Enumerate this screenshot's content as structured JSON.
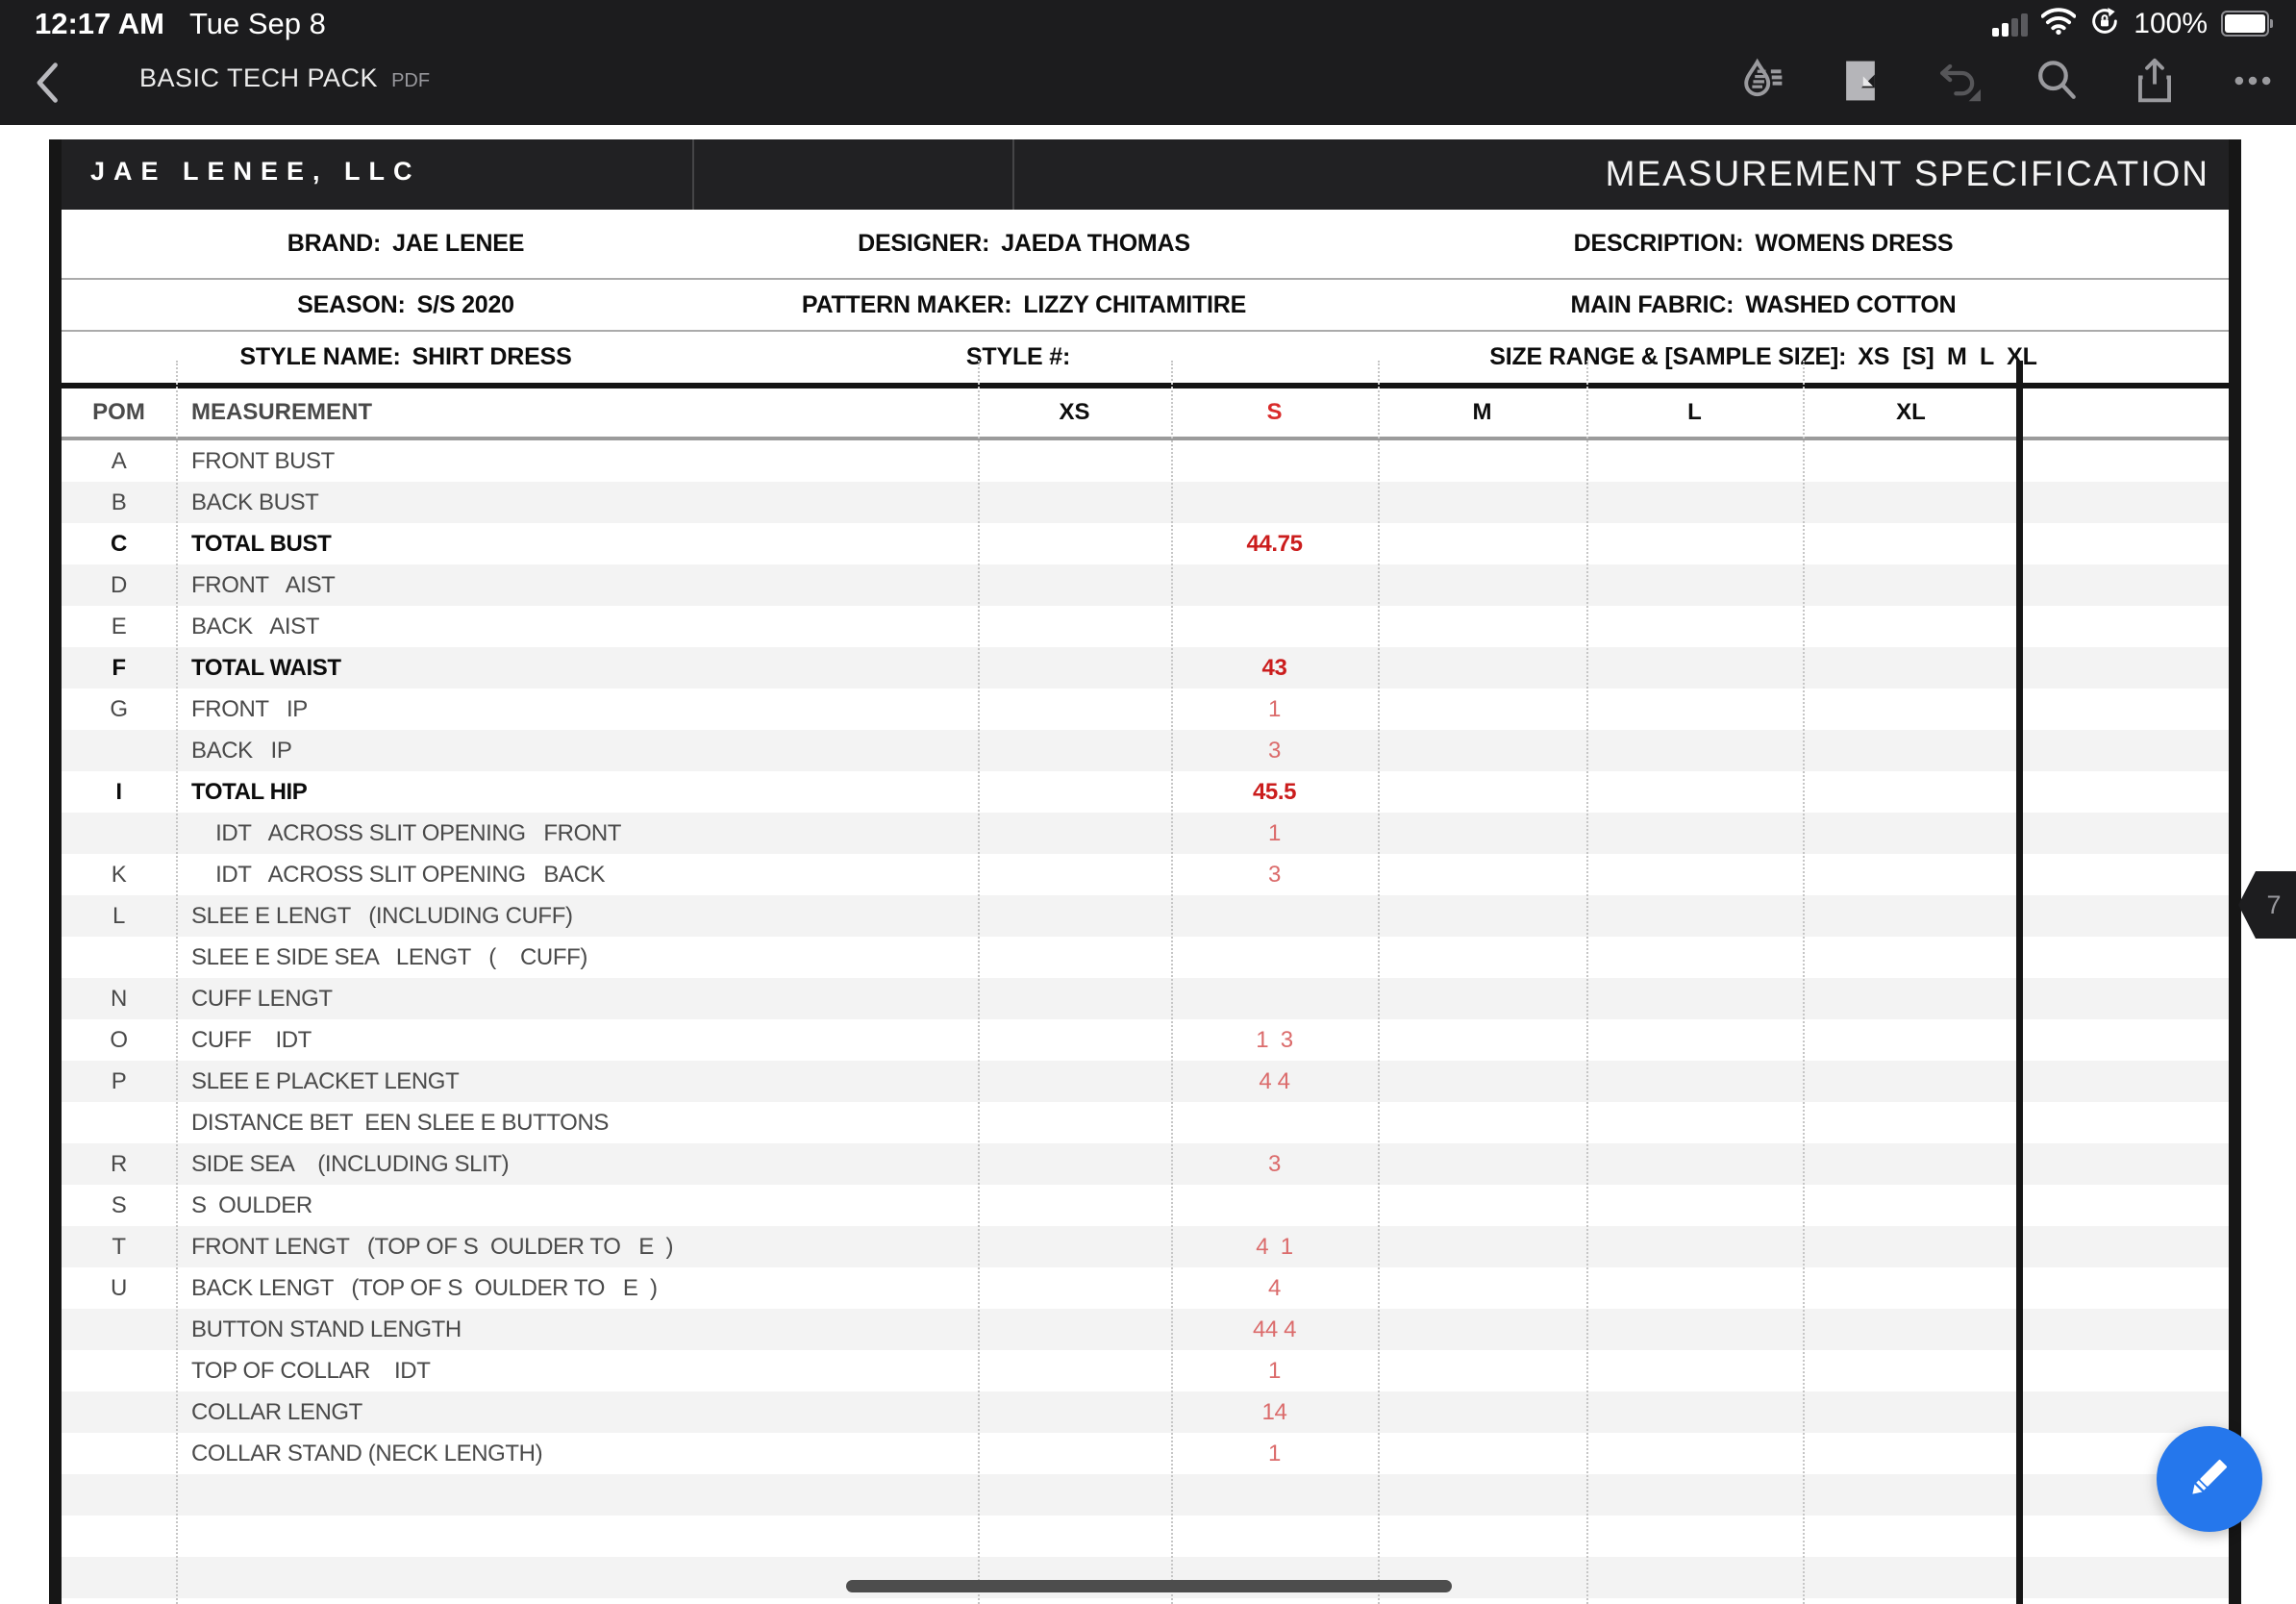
{
  "status_bar": {
    "time": "12:17 AM",
    "date": "Tue Sep 8",
    "battery_percent": "100%"
  },
  "toolbar": {
    "title": "BASIC TECH PACK",
    "doc_type": "PDF",
    "icons": [
      "back-chevron",
      "annotate",
      "reading-view",
      "undo",
      "search",
      "share",
      "more"
    ]
  },
  "page": {
    "company": "JAE LENEE, LLC",
    "sheet_title": "MEASUREMENT SPECIFICATION",
    "page_number": "7",
    "info": {
      "brand_label": "BRAND:",
      "brand": "JAE LENEE",
      "designer_label": "DESIGNER:",
      "designer": "JAEDA THOMAS",
      "description_label": "DESCRIPTION:",
      "description": "WOMENS DRESS",
      "season_label": "SEASON:",
      "season": "S/S 2020",
      "pattern_maker_label": "PATTERN MAKER:",
      "pattern_maker": "LIZZY CHITAMITIRE",
      "main_fabric_label": "MAIN FABRIC:",
      "main_fabric": "WASHED COTTON",
      "style_name_label": "STYLE NAME:",
      "style_name": "SHIRT DRESS",
      "style_no_label": "STYLE #:",
      "style_no": "",
      "size_range_label": "SIZE RANGE & [SAMPLE SIZE]:",
      "size_range": "XS  [S]  M  L  XL"
    },
    "table": {
      "headers": {
        "pom": "POM",
        "measurement": "MEASUREMENT",
        "xs": "XS",
        "s": "S",
        "m": "M",
        "l": "L",
        "xl": "XL"
      },
      "rows": [
        {
          "pom": "A",
          "label": "FRONT BUST",
          "s": "",
          "bold": false,
          "indent": false
        },
        {
          "pom": "B",
          "label": "BACK BUST",
          "s": "",
          "bold": false,
          "indent": false
        },
        {
          "pom": "C",
          "label": "TOTAL BUST",
          "s": "44.75",
          "bold": true,
          "indent": false
        },
        {
          "pom": "D",
          "label": "FRONT   AIST",
          "s": "",
          "bold": false,
          "indent": false
        },
        {
          "pom": "E",
          "label": "BACK   AIST",
          "s": "",
          "bold": false,
          "indent": false
        },
        {
          "pom": "F",
          "label": "TOTAL WAIST",
          "s": "43",
          "bold": true,
          "indent": false
        },
        {
          "pom": "G",
          "label": "FRONT   IP",
          "s": "1",
          "bold": false,
          "indent": false
        },
        {
          "pom": "",
          "label": "BACK   IP",
          "s": "3",
          "bold": false,
          "indent": false
        },
        {
          "pom": "I",
          "label": "TOTAL HIP",
          "s": "45.5",
          "bold": true,
          "indent": false
        },
        {
          "pom": "",
          "label": "IDT   ACROSS SLIT OPENING   FRONT",
          "s": "1",
          "bold": false,
          "indent": true
        },
        {
          "pom": "K",
          "label": "IDT   ACROSS SLIT OPENING   BACK",
          "s": "3",
          "bold": false,
          "indent": true
        },
        {
          "pom": "L",
          "label": "SLEE E LENGT   (INCLUDING CUFF)",
          "s": "",
          "bold": false,
          "indent": false
        },
        {
          "pom": "",
          "label": "SLEE E SIDE SEA   LENGT   (    CUFF)",
          "s": "",
          "bold": false,
          "indent": false
        },
        {
          "pom": "N",
          "label": "CUFF LENGT",
          "s": "",
          "bold": false,
          "indent": false
        },
        {
          "pom": "O",
          "label": "CUFF    IDT",
          "s": "1  3",
          "bold": false,
          "indent": false
        },
        {
          "pom": "P",
          "label": "SLEE E PLACKET LENGT",
          "s": "4 4",
          "bold": false,
          "indent": false
        },
        {
          "pom": "",
          "label": "DISTANCE BET  EEN SLEE E BUTTONS",
          "s": "",
          "bold": false,
          "indent": false
        },
        {
          "pom": "R",
          "label": "SIDE SEA    (INCLUDING SLIT)",
          "s": "3",
          "bold": false,
          "indent": false
        },
        {
          "pom": "S",
          "label": "S  OULDER",
          "s": "",
          "bold": false,
          "indent": false
        },
        {
          "pom": "T",
          "label": "FRONT LENGT   (TOP OF S  OULDER TO   E  )",
          "s": "4  1",
          "bold": false,
          "indent": false
        },
        {
          "pom": "U",
          "label": "BACK LENGT   (TOP OF S  OULDER TO   E  )",
          "s": "4",
          "bold": false,
          "indent": false
        },
        {
          "pom": "",
          "label": "BUTTON STAND LENGTH",
          "s": "44 4",
          "bold": false,
          "indent": false
        },
        {
          "pom": "",
          "label": "TOP OF COLLAR    IDT",
          "s": "1",
          "bold": false,
          "indent": false
        },
        {
          "pom": "",
          "label": "COLLAR LENGT",
          "s": "14",
          "bold": false,
          "indent": false
        },
        {
          "pom": "",
          "label": "COLLAR STAND (NECK LENGTH)",
          "s": "1",
          "bold": false,
          "indent": false
        },
        {
          "pom": "",
          "label": "",
          "s": "",
          "bold": false,
          "indent": false
        },
        {
          "pom": "",
          "label": "",
          "s": "",
          "bold": false,
          "indent": false
        },
        {
          "pom": "",
          "label": "",
          "s": "",
          "bold": false,
          "indent": false
        },
        {
          "pom": "",
          "label": "",
          "s": "",
          "bold": false,
          "indent": false
        }
      ]
    }
  },
  "colors": {
    "accent_blue": "#2577ec",
    "value_red_bold": "#cb1d1d",
    "value_red_light": "#db6b6b",
    "chrome_dark": "#1c1c1e"
  }
}
